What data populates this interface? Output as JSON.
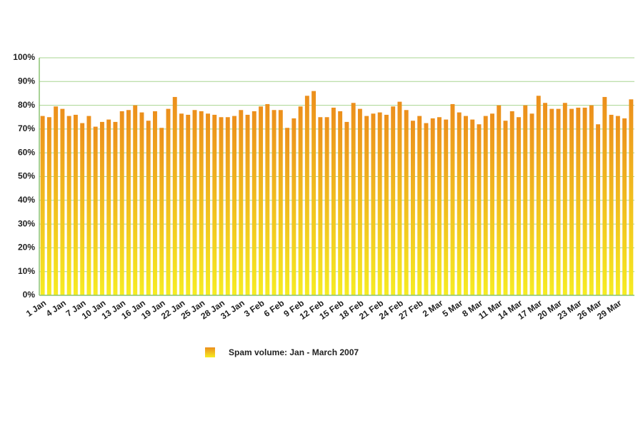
{
  "chart_data": {
    "type": "bar",
    "categories": [
      "1 Jan",
      null,
      null,
      "4 Jan",
      null,
      null,
      "7 Jan",
      null,
      null,
      "10 Jan",
      null,
      null,
      "13 Jan",
      null,
      null,
      "16 Jan",
      null,
      null,
      "19 Jan",
      null,
      null,
      "22 Jan",
      null,
      null,
      "25 Jan",
      null,
      null,
      "28 Jan",
      null,
      null,
      "31 Jan",
      null,
      null,
      "3 Feb",
      null,
      null,
      "6 Feb",
      null,
      null,
      "9 Feb",
      null,
      null,
      "12 Feb",
      null,
      null,
      "15 Feb",
      null,
      null,
      "18 Feb",
      null,
      null,
      "21 Feb",
      null,
      null,
      "24 Feb",
      null,
      null,
      "27 Feb",
      null,
      null,
      "2 Mar",
      null,
      null,
      "5 Mar",
      null,
      null,
      "8 Mar",
      null,
      null,
      "11 Mar",
      null,
      null,
      "14 Mar",
      null,
      null,
      "17 Mar",
      null,
      null,
      "20 Mar",
      null,
      null,
      "23 Mar",
      null,
      null,
      "26 Mar",
      null,
      null,
      "29 Mar",
      null,
      null
    ],
    "series": [
      {
        "name": "Spam volume: Jan - March 2007",
        "color": "#ec8f1c",
        "values": [
          75.5,
          75,
          79.5,
          78.5,
          75.5,
          76,
          72.5,
          75.5,
          71,
          73,
          74,
          73,
          77.5,
          78,
          80,
          77,
          73.5,
          77.5,
          70.5,
          78.5,
          83.5,
          76.5,
          76,
          78,
          77.5,
          76.5,
          76,
          75,
          75,
          75.5,
          78,
          76,
          77.5,
          79.5,
          80.5,
          78,
          78,
          70.5,
          74.5,
          79.5,
          84,
          86,
          75,
          75,
          79,
          77.5,
          73,
          81,
          78.5,
          75.5,
          76.5,
          77,
          76,
          79.5,
          81.5,
          78,
          73.5,
          75.5,
          72.5,
          74.5,
          75,
          74,
          80.5,
          77,
          75.5,
          74,
          72,
          75.5,
          76.5,
          80,
          73.5,
          77.5,
          75,
          80,
          76.5,
          84,
          81,
          78.5,
          78.5,
          81,
          78.5,
          79,
          79,
          80,
          72,
          83.5,
          76,
          75.5,
          74.5,
          82.5
        ]
      }
    ],
    "ylim": [
      0,
      100
    ],
    "yticks": [
      {
        "value": 0,
        "label": "0%"
      },
      {
        "value": 10,
        "label": "10%"
      },
      {
        "value": 20,
        "label": "20%"
      },
      {
        "value": 30,
        "label": "30%"
      },
      {
        "value": 40,
        "label": "40%"
      },
      {
        "value": 50,
        "label": "50%"
      },
      {
        "value": 60,
        "label": "60%"
      },
      {
        "value": 70,
        "label": "70%"
      },
      {
        "value": 80,
        "label": "80%"
      },
      {
        "value": 90,
        "label": "90%"
      },
      {
        "value": 100,
        "label": "100%"
      }
    ],
    "grid": true,
    "legend": "bottom"
  }
}
